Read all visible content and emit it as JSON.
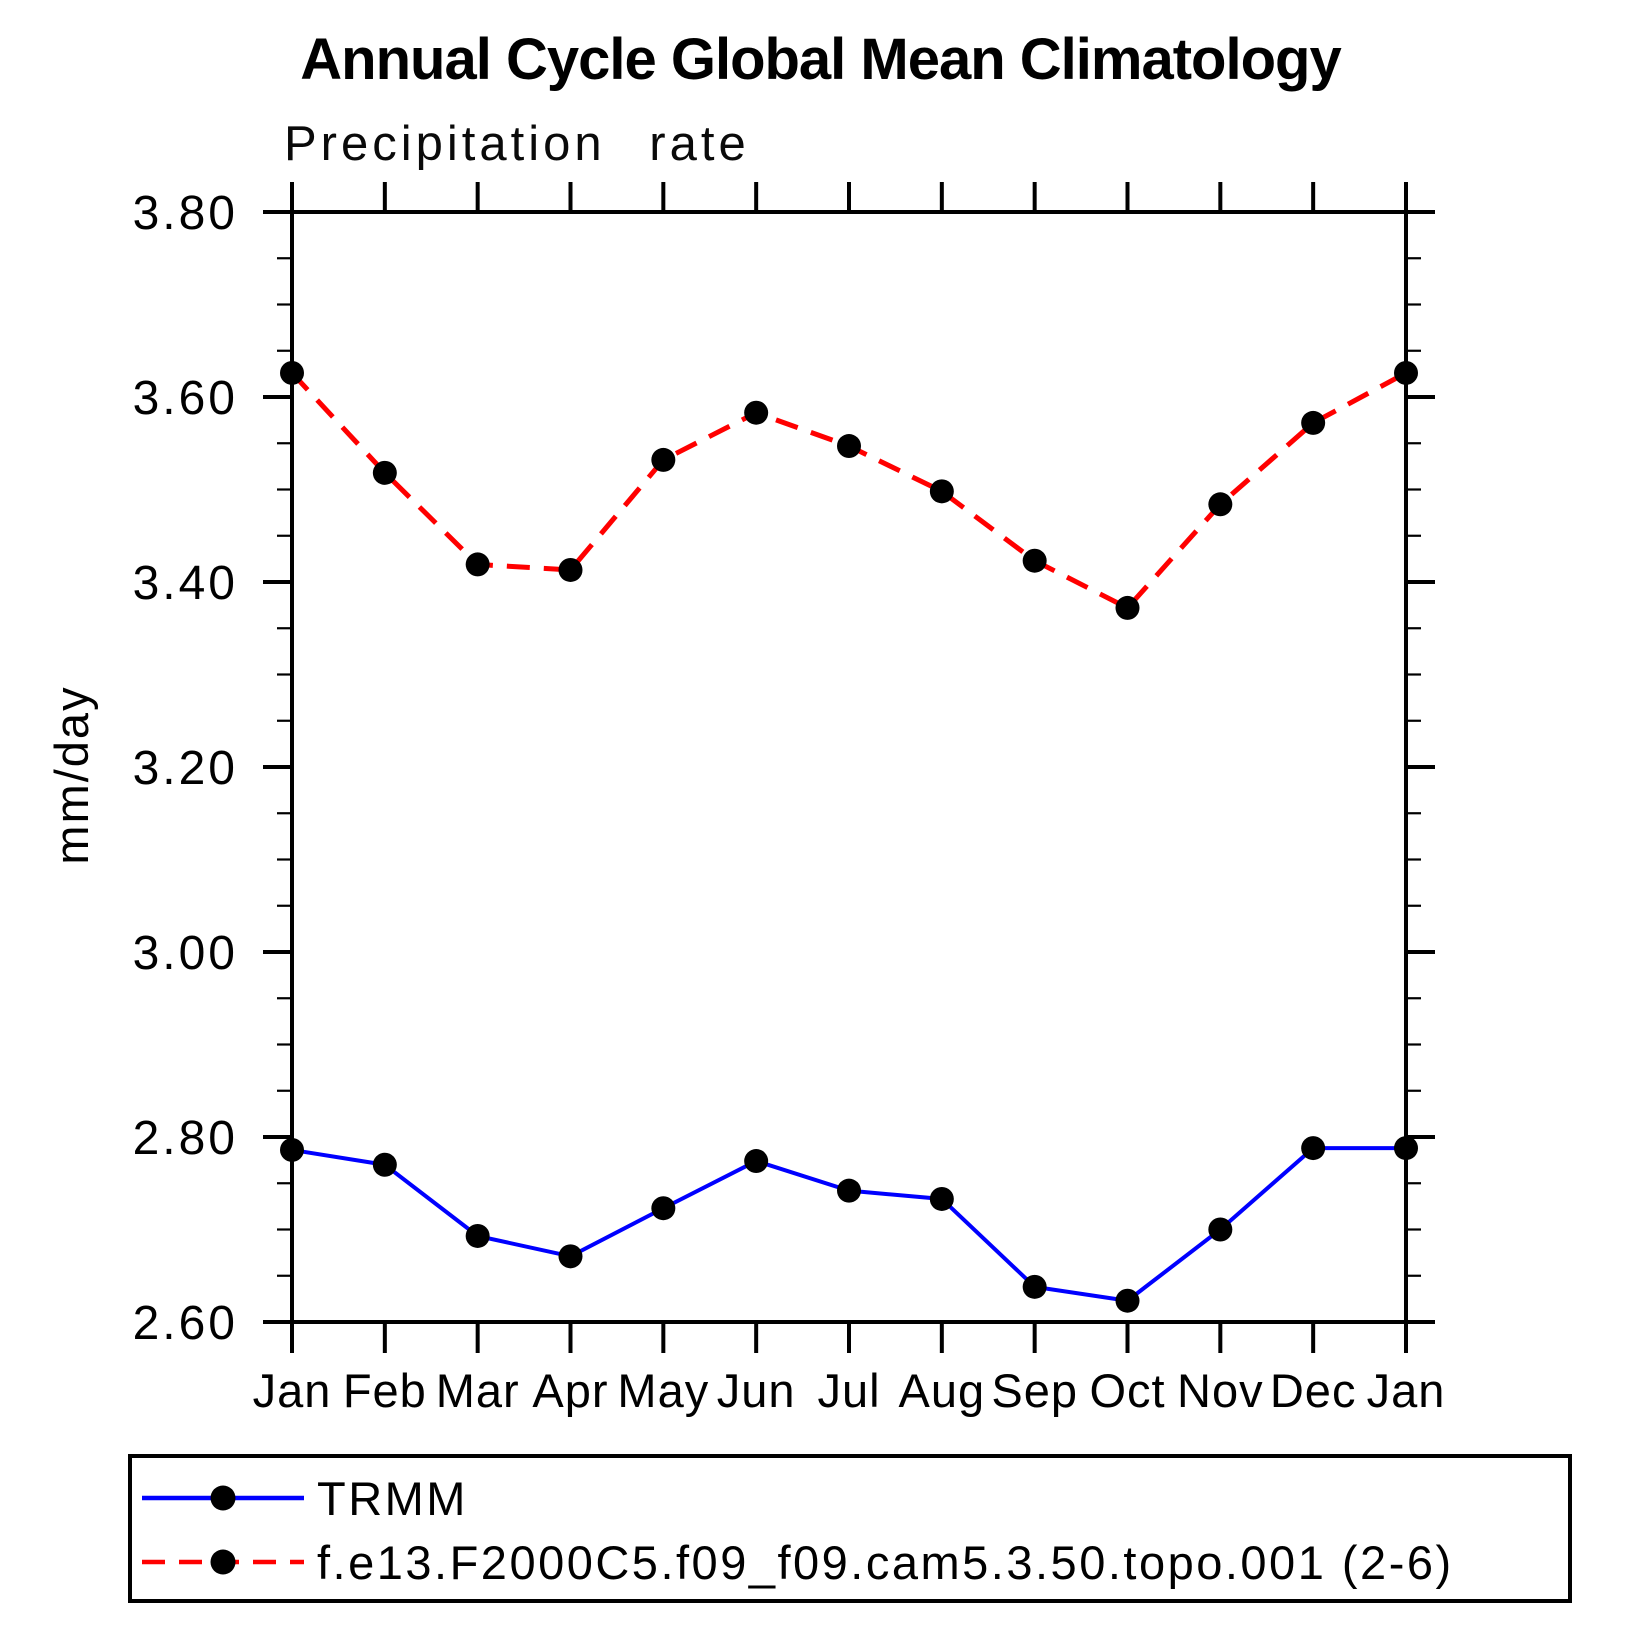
{
  "header": {
    "title": "Annual Cycle Global Mean Climatology"
  },
  "chart_data": {
    "type": "line",
    "title": "Precipitation rate",
    "xlabel": "",
    "ylabel": "mm/day",
    "categories": [
      "Jan",
      "Feb",
      "Mar",
      "Apr",
      "May",
      "Jun",
      "Jul",
      "Aug",
      "Sep",
      "Oct",
      "Nov",
      "Dec",
      "Jan"
    ],
    "ylim": [
      2.6,
      3.8
    ],
    "y_major_tick_labels": [
      "3.80",
      "3.60",
      "3.40",
      "3.20",
      "3.00",
      "2.80",
      "2.60"
    ],
    "y_major_step": 0.2,
    "y_minor_step": 0.05,
    "grid": false,
    "legend_position": "bottom-left-box",
    "series": [
      {
        "name": "TRMM",
        "color": "#0000ff",
        "line_style": "solid",
        "marker": "filled-circle",
        "marker_color": "#000000",
        "values": [
          2.786,
          2.77,
          2.693,
          2.671,
          2.723,
          2.774,
          2.742,
          2.733,
          2.638,
          2.623,
          2.7,
          2.788,
          2.788
        ]
      },
      {
        "name": "f.e13.F2000C5.f09_f09.cam5.3.50.topo.001 (2-6)",
        "color": "#ff0000",
        "line_style": "dashed",
        "marker": "filled-circle",
        "marker_color": "#000000",
        "values": [
          3.626,
          3.518,
          3.419,
          3.413,
          3.532,
          3.583,
          3.547,
          3.498,
          3.423,
          3.372,
          3.484,
          3.572,
          3.626
        ]
      }
    ]
  },
  "colors": {
    "axis": "#000000",
    "text": "#000000",
    "background": "#ffffff",
    "trmm_line": "#0000ff",
    "model_line": "#ff0000",
    "marker": "#000000"
  }
}
